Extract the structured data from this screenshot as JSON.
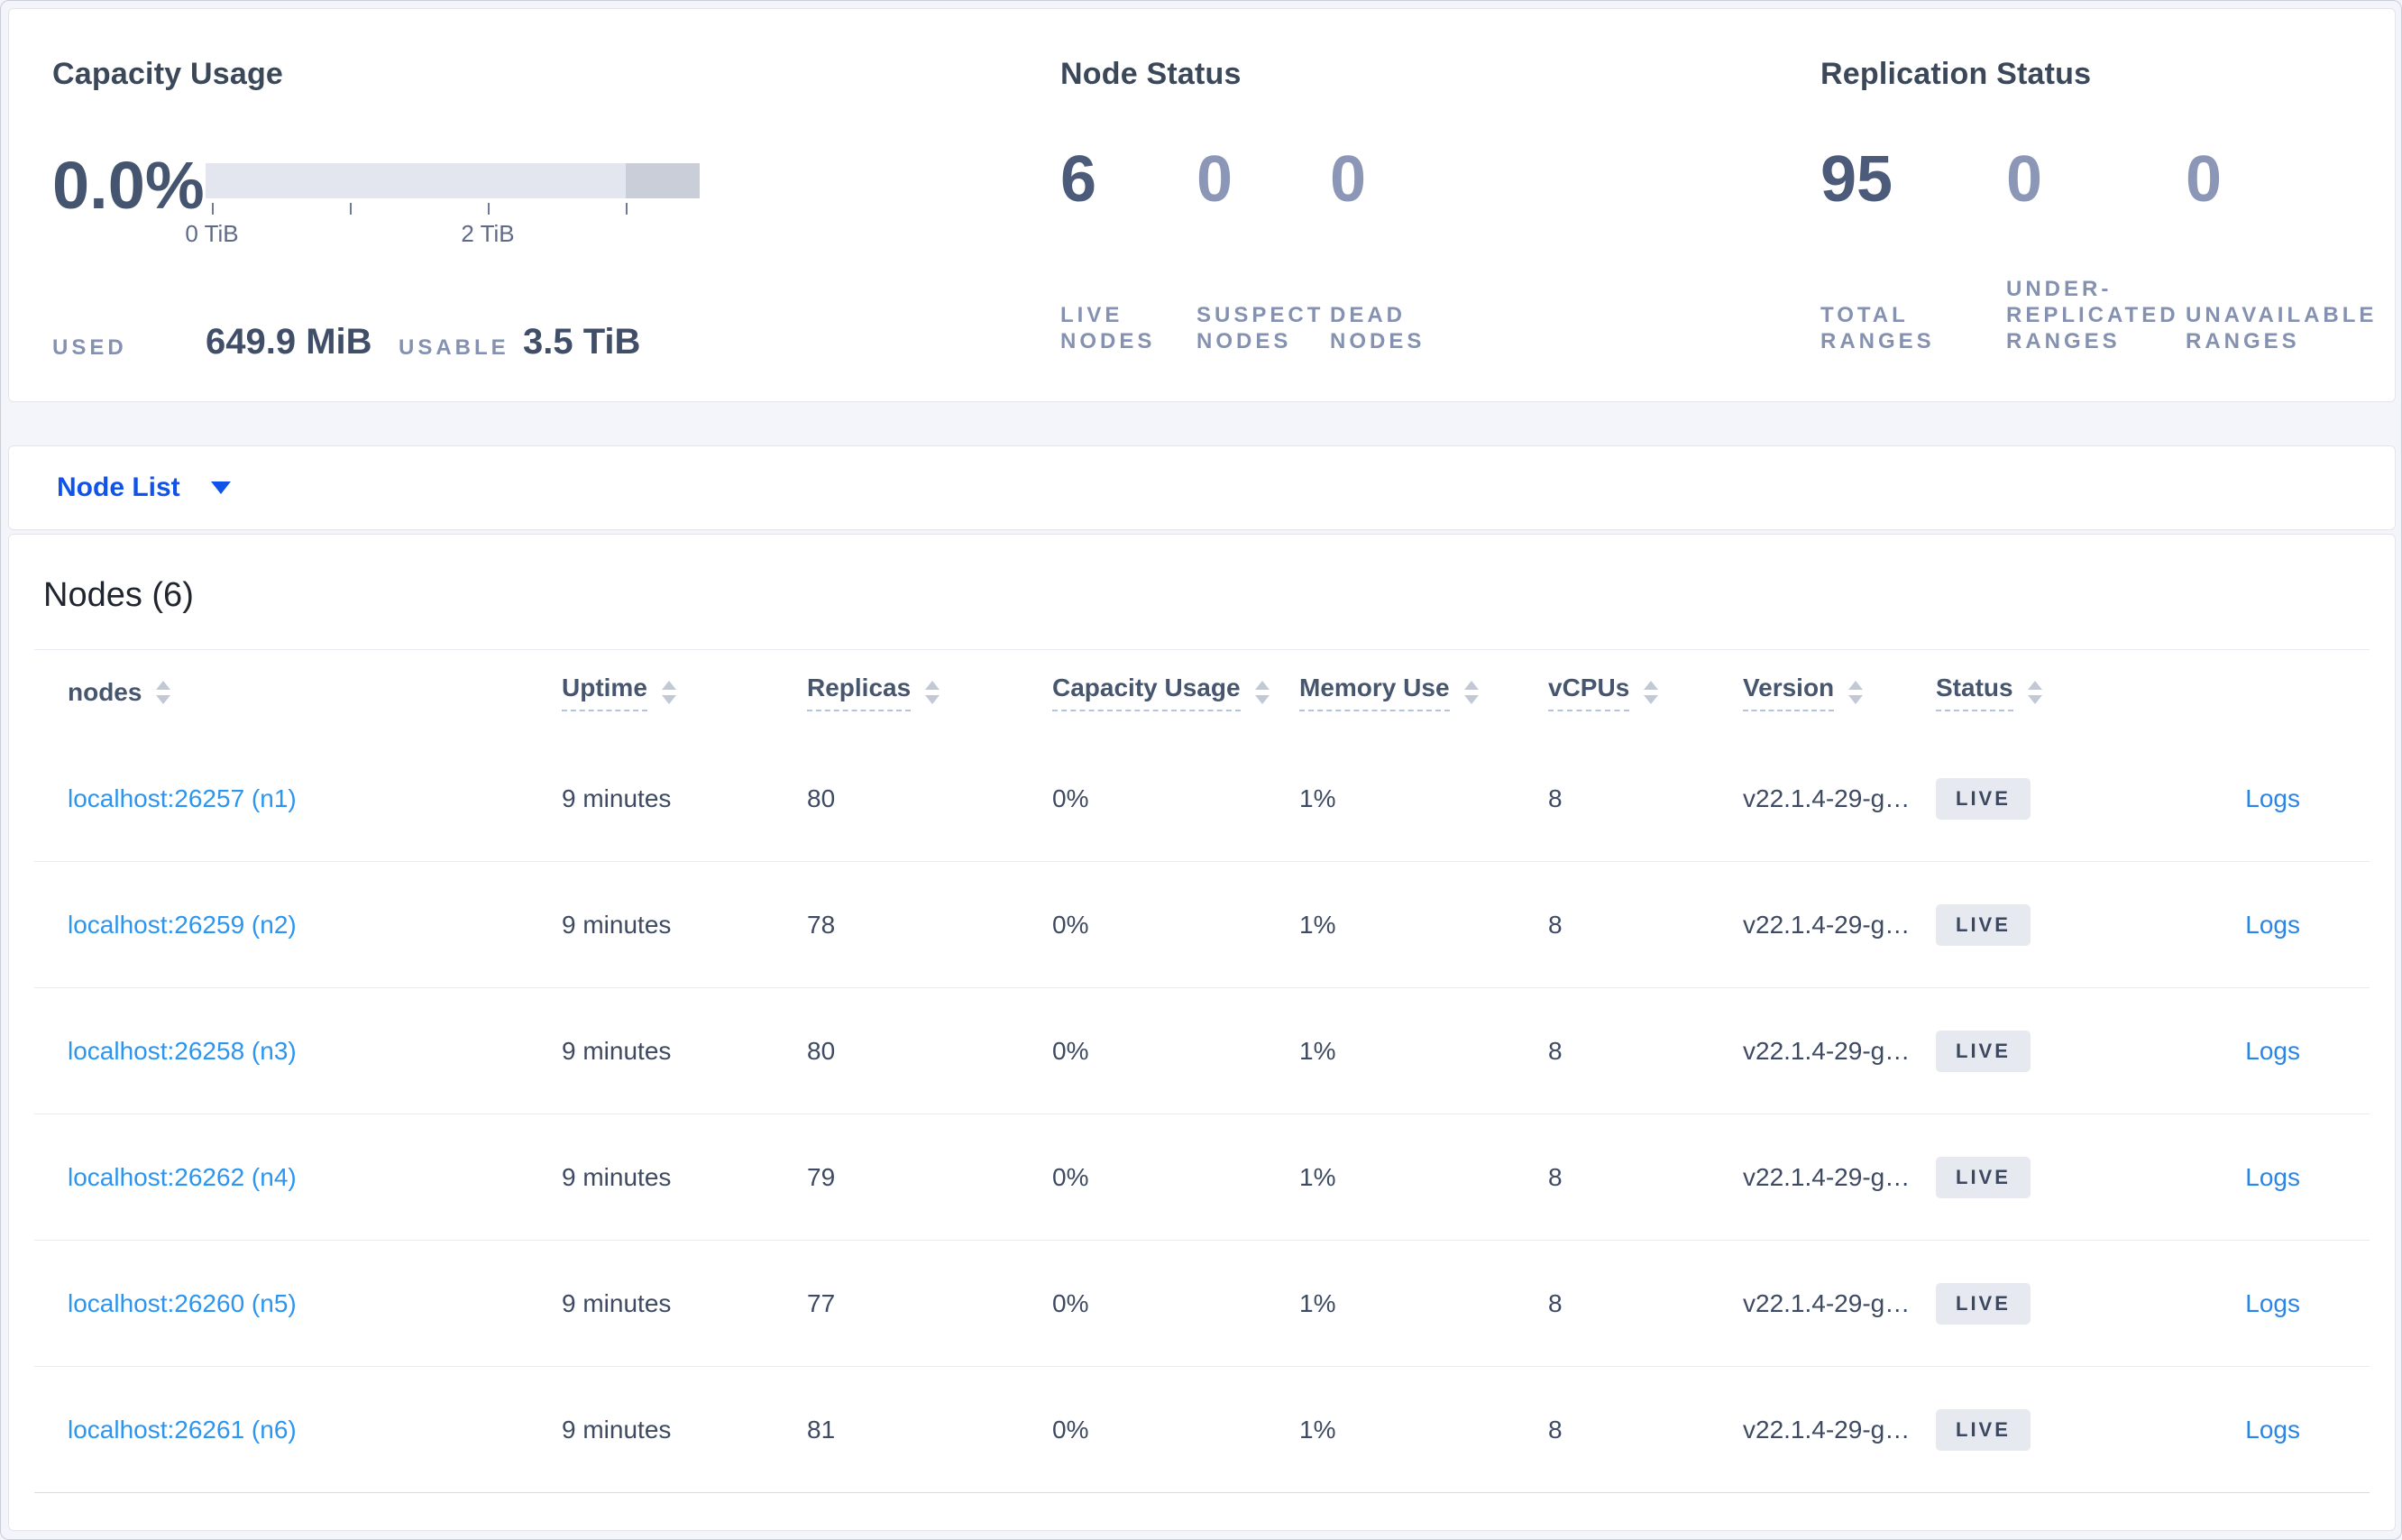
{
  "summary": {
    "capacity": {
      "title": "Capacity Usage",
      "percent": "0.0%",
      "axis_ticks": [
        {
          "label": "0 TiB"
        },
        {
          "label": ""
        },
        {
          "label": "2 TiB"
        },
        {
          "label": ""
        }
      ],
      "used_label": "USED",
      "used_value": "649.9 MiB",
      "usable_label": "USABLE",
      "usable_value": "3.5 TiB"
    },
    "node_status": {
      "title": "Node Status",
      "metrics": [
        {
          "value": "6",
          "label": "LIVE NODES"
        },
        {
          "value": "0",
          "label": "SUSPECT NODES"
        },
        {
          "value": "0",
          "label": "DEAD NODES"
        }
      ]
    },
    "replication_status": {
      "title": "Replication Status",
      "metrics": [
        {
          "value": "95",
          "label": "TOTAL RANGES"
        },
        {
          "value": "0",
          "label": "UNDER-REPLICATED RANGES"
        },
        {
          "value": "0",
          "label": "UNAVAILABLE RANGES"
        }
      ]
    }
  },
  "view_selector": {
    "label": "Node List"
  },
  "table": {
    "heading": "Nodes (6)",
    "columns": [
      {
        "key": "node",
        "label": "nodes",
        "dashed": false
      },
      {
        "key": "uptime",
        "label": "Uptime",
        "dashed": true
      },
      {
        "key": "replicas",
        "label": "Replicas",
        "dashed": true
      },
      {
        "key": "capacity",
        "label": "Capacity Usage",
        "dashed": true
      },
      {
        "key": "memory",
        "label": "Memory Use",
        "dashed": true
      },
      {
        "key": "vcpus",
        "label": "vCPUs",
        "dashed": true
      },
      {
        "key": "version",
        "label": "Version",
        "dashed": true
      },
      {
        "key": "status",
        "label": "Status",
        "dashed": true
      }
    ],
    "rows": [
      {
        "node": "localhost:26257 (n1)",
        "uptime": "9 minutes",
        "replicas": "80",
        "capacity": "0%",
        "memory": "1%",
        "vcpus": "8",
        "version": "v22.1.4-29-g…",
        "status": "LIVE",
        "logs": "Logs"
      },
      {
        "node": "localhost:26259 (n2)",
        "uptime": "9 minutes",
        "replicas": "78",
        "capacity": "0%",
        "memory": "1%",
        "vcpus": "8",
        "version": "v22.1.4-29-g…",
        "status": "LIVE",
        "logs": "Logs"
      },
      {
        "node": "localhost:26258 (n3)",
        "uptime": "9 minutes",
        "replicas": "80",
        "capacity": "0%",
        "memory": "1%",
        "vcpus": "8",
        "version": "v22.1.4-29-g…",
        "status": "LIVE",
        "logs": "Logs"
      },
      {
        "node": "localhost:26262 (n4)",
        "uptime": "9 minutes",
        "replicas": "79",
        "capacity": "0%",
        "memory": "1%",
        "vcpus": "8",
        "version": "v22.1.4-29-g…",
        "status": "LIVE",
        "logs": "Logs"
      },
      {
        "node": "localhost:26260 (n5)",
        "uptime": "9 minutes",
        "replicas": "77",
        "capacity": "0%",
        "memory": "1%",
        "vcpus": "8",
        "version": "v22.1.4-29-g…",
        "status": "LIVE",
        "logs": "Logs"
      },
      {
        "node": "localhost:26261 (n6)",
        "uptime": "9 minutes",
        "replicas": "81",
        "capacity": "0%",
        "memory": "1%",
        "vcpus": "8",
        "version": "v22.1.4-29-g…",
        "status": "LIVE",
        "logs": "Logs"
      }
    ]
  },
  "colors": {
    "accent_blue": "#1053ea",
    "link_blue": "#2b95f0",
    "logs_blue": "#2a85e9",
    "metric_strong": "#4c5b7a",
    "metric_muted": "#8c96b6",
    "bar_track": "#e3e6ee",
    "bar_segment": "#c9ced9",
    "badge_bg": "#e6e9f0",
    "page_bg": "#f3f5fa"
  }
}
